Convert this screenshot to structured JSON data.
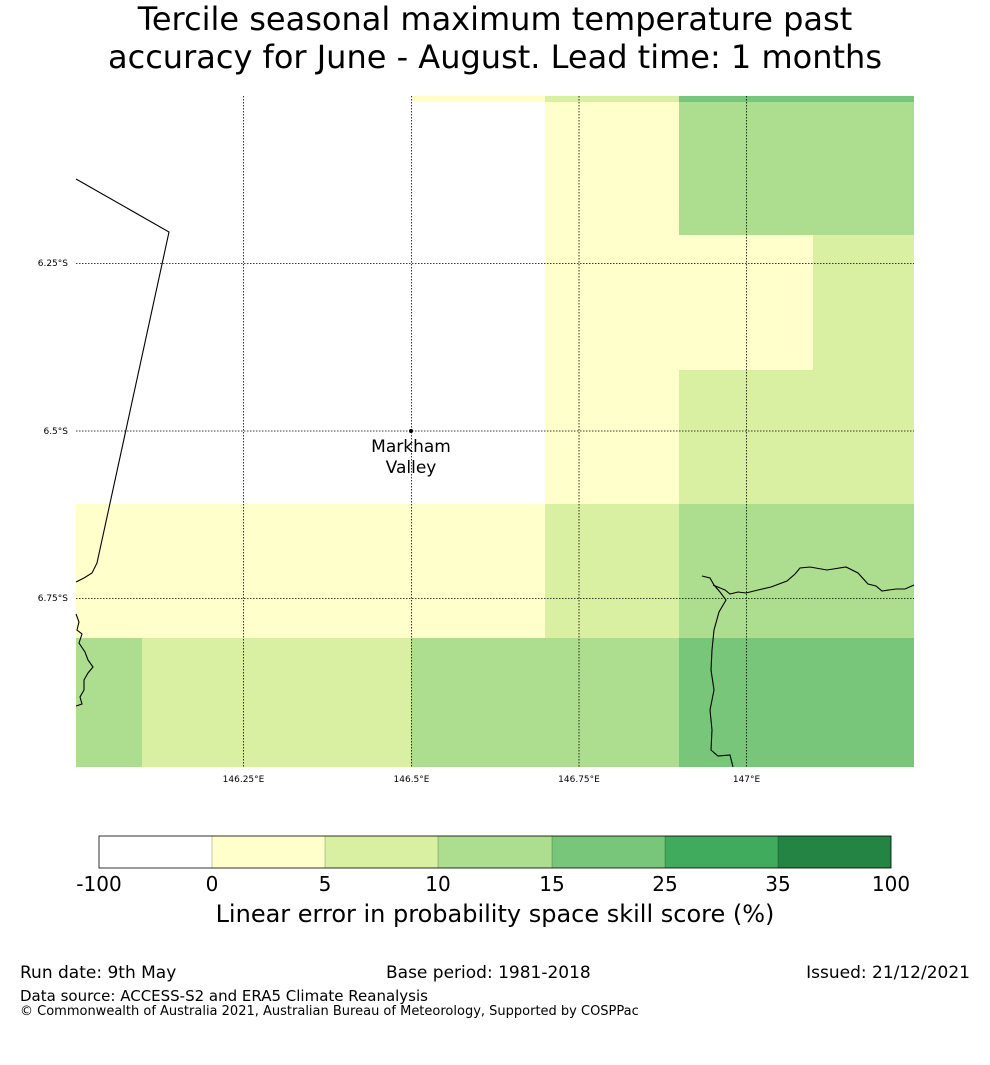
{
  "title": {
    "line1": "Tercile seasonal maximum temperature past",
    "line2": "accuracy for June - August. Lead time: 1 months"
  },
  "map": {
    "lon_ticks": [
      "146.25°E",
      "146.5°E",
      "146.75°E",
      "147°E"
    ],
    "lat_ticks": [
      "6.25°S",
      "6.5°S",
      "6.75°S"
    ],
    "place": {
      "line1": "Markham",
      "line2": "Valley"
    }
  },
  "colorbar": {
    "title": "Linear error in probability space skill score (%)",
    "bounds": [
      "-100",
      "0",
      "5",
      "10",
      "15",
      "25",
      "35",
      "100"
    ],
    "colors": [
      "#ffffff",
      "#ffffcc",
      "#d9f0a3",
      "#addd8e",
      "#78c679",
      "#41ab5d",
      "#238443"
    ]
  },
  "footer": {
    "run_date": "Run date: 9th May",
    "base_period": "Base period: 1981-2018",
    "issued": "Issued: 21/12/2021",
    "data_source": "Data source: ACCESS-S2 and ERA5 Climate Reanalysis",
    "copyright": "© Commonwealth of Australia 2021, Australian Bureau of Meteorology, Supported by COSPPac"
  }
}
